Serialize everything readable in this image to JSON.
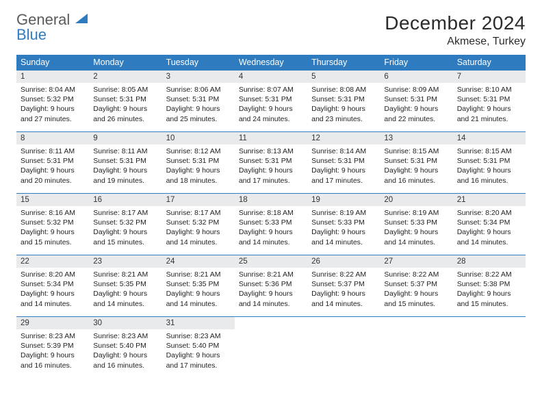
{
  "logo": {
    "line1": "General",
    "line2": "Blue"
  },
  "title": "December 2024",
  "location": "Akmese, Turkey",
  "colors": {
    "header_bg": "#2f7bbf",
    "header_fg": "#ffffff",
    "daynum_bg": "#e9eaeb",
    "border": "#2f7bbf",
    "text": "#222222",
    "logo_gray": "#5a5a5a",
    "logo_blue": "#2f7bbf"
  },
  "day_names": [
    "Sunday",
    "Monday",
    "Tuesday",
    "Wednesday",
    "Thursday",
    "Friday",
    "Saturday"
  ],
  "weeks": [
    [
      {
        "n": "1",
        "sunrise": "8:04 AM",
        "sunset": "5:32 PM",
        "dl1": "Daylight: 9 hours",
        "dl2": "and 27 minutes."
      },
      {
        "n": "2",
        "sunrise": "8:05 AM",
        "sunset": "5:31 PM",
        "dl1": "Daylight: 9 hours",
        "dl2": "and 26 minutes."
      },
      {
        "n": "3",
        "sunrise": "8:06 AM",
        "sunset": "5:31 PM",
        "dl1": "Daylight: 9 hours",
        "dl2": "and 25 minutes."
      },
      {
        "n": "4",
        "sunrise": "8:07 AM",
        "sunset": "5:31 PM",
        "dl1": "Daylight: 9 hours",
        "dl2": "and 24 minutes."
      },
      {
        "n": "5",
        "sunrise": "8:08 AM",
        "sunset": "5:31 PM",
        "dl1": "Daylight: 9 hours",
        "dl2": "and 23 minutes."
      },
      {
        "n": "6",
        "sunrise": "8:09 AM",
        "sunset": "5:31 PM",
        "dl1": "Daylight: 9 hours",
        "dl2": "and 22 minutes."
      },
      {
        "n": "7",
        "sunrise": "8:10 AM",
        "sunset": "5:31 PM",
        "dl1": "Daylight: 9 hours",
        "dl2": "and 21 minutes."
      }
    ],
    [
      {
        "n": "8",
        "sunrise": "8:11 AM",
        "sunset": "5:31 PM",
        "dl1": "Daylight: 9 hours",
        "dl2": "and 20 minutes."
      },
      {
        "n": "9",
        "sunrise": "8:11 AM",
        "sunset": "5:31 PM",
        "dl1": "Daylight: 9 hours",
        "dl2": "and 19 minutes."
      },
      {
        "n": "10",
        "sunrise": "8:12 AM",
        "sunset": "5:31 PM",
        "dl1": "Daylight: 9 hours",
        "dl2": "and 18 minutes."
      },
      {
        "n": "11",
        "sunrise": "8:13 AM",
        "sunset": "5:31 PM",
        "dl1": "Daylight: 9 hours",
        "dl2": "and 17 minutes."
      },
      {
        "n": "12",
        "sunrise": "8:14 AM",
        "sunset": "5:31 PM",
        "dl1": "Daylight: 9 hours",
        "dl2": "and 17 minutes."
      },
      {
        "n": "13",
        "sunrise": "8:15 AM",
        "sunset": "5:31 PM",
        "dl1": "Daylight: 9 hours",
        "dl2": "and 16 minutes."
      },
      {
        "n": "14",
        "sunrise": "8:15 AM",
        "sunset": "5:31 PM",
        "dl1": "Daylight: 9 hours",
        "dl2": "and 16 minutes."
      }
    ],
    [
      {
        "n": "15",
        "sunrise": "8:16 AM",
        "sunset": "5:32 PM",
        "dl1": "Daylight: 9 hours",
        "dl2": "and 15 minutes."
      },
      {
        "n": "16",
        "sunrise": "8:17 AM",
        "sunset": "5:32 PM",
        "dl1": "Daylight: 9 hours",
        "dl2": "and 15 minutes."
      },
      {
        "n": "17",
        "sunrise": "8:17 AM",
        "sunset": "5:32 PM",
        "dl1": "Daylight: 9 hours",
        "dl2": "and 14 minutes."
      },
      {
        "n": "18",
        "sunrise": "8:18 AM",
        "sunset": "5:33 PM",
        "dl1": "Daylight: 9 hours",
        "dl2": "and 14 minutes."
      },
      {
        "n": "19",
        "sunrise": "8:19 AM",
        "sunset": "5:33 PM",
        "dl1": "Daylight: 9 hours",
        "dl2": "and 14 minutes."
      },
      {
        "n": "20",
        "sunrise": "8:19 AM",
        "sunset": "5:33 PM",
        "dl1": "Daylight: 9 hours",
        "dl2": "and 14 minutes."
      },
      {
        "n": "21",
        "sunrise": "8:20 AM",
        "sunset": "5:34 PM",
        "dl1": "Daylight: 9 hours",
        "dl2": "and 14 minutes."
      }
    ],
    [
      {
        "n": "22",
        "sunrise": "8:20 AM",
        "sunset": "5:34 PM",
        "dl1": "Daylight: 9 hours",
        "dl2": "and 14 minutes."
      },
      {
        "n": "23",
        "sunrise": "8:21 AM",
        "sunset": "5:35 PM",
        "dl1": "Daylight: 9 hours",
        "dl2": "and 14 minutes."
      },
      {
        "n": "24",
        "sunrise": "8:21 AM",
        "sunset": "5:35 PM",
        "dl1": "Daylight: 9 hours",
        "dl2": "and 14 minutes."
      },
      {
        "n": "25",
        "sunrise": "8:21 AM",
        "sunset": "5:36 PM",
        "dl1": "Daylight: 9 hours",
        "dl2": "and 14 minutes."
      },
      {
        "n": "26",
        "sunrise": "8:22 AM",
        "sunset": "5:37 PM",
        "dl1": "Daylight: 9 hours",
        "dl2": "and 14 minutes."
      },
      {
        "n": "27",
        "sunrise": "8:22 AM",
        "sunset": "5:37 PM",
        "dl1": "Daylight: 9 hours",
        "dl2": "and 15 minutes."
      },
      {
        "n": "28",
        "sunrise": "8:22 AM",
        "sunset": "5:38 PM",
        "dl1": "Daylight: 9 hours",
        "dl2": "and 15 minutes."
      }
    ],
    [
      {
        "n": "29",
        "sunrise": "8:23 AM",
        "sunset": "5:39 PM",
        "dl1": "Daylight: 9 hours",
        "dl2": "and 16 minutes."
      },
      {
        "n": "30",
        "sunrise": "8:23 AM",
        "sunset": "5:40 PM",
        "dl1": "Daylight: 9 hours",
        "dl2": "and 16 minutes."
      },
      {
        "n": "31",
        "sunrise": "8:23 AM",
        "sunset": "5:40 PM",
        "dl1": "Daylight: 9 hours",
        "dl2": "and 17 minutes."
      },
      null,
      null,
      null,
      null
    ]
  ]
}
